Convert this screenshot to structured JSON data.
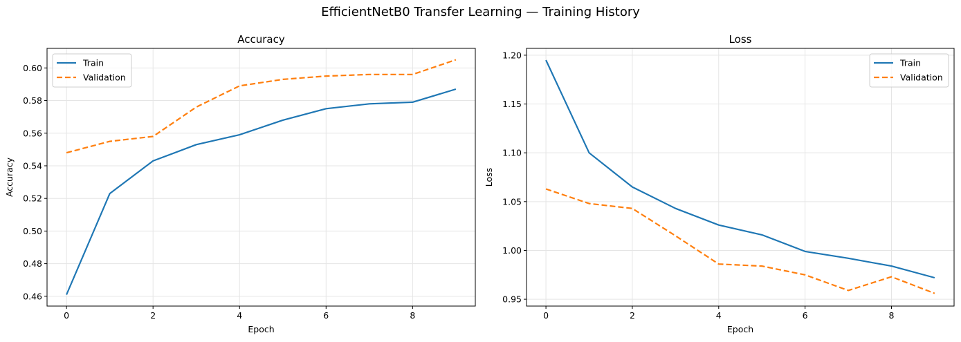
{
  "figure": {
    "suptitle": "EfficientNetB0 Transfer Learning — Training History"
  },
  "colors": {
    "train": "#1f77b4",
    "validation": "#ff7f0e",
    "grid": "#e5e5e5",
    "axes": "#000000"
  },
  "chart_data": [
    {
      "type": "line",
      "title": "Accuracy",
      "xlabel": "Epoch",
      "ylabel": "Accuracy",
      "x": [
        0,
        1,
        2,
        3,
        4,
        5,
        6,
        7,
        8,
        9
      ],
      "xticks": [
        "0",
        "2",
        "4",
        "6",
        "8"
      ],
      "yticks": [
        "0.46",
        "0.48",
        "0.50",
        "0.52",
        "0.54",
        "0.56",
        "0.58",
        "0.60"
      ],
      "ylim": [
        0.454,
        0.612
      ],
      "xlim": [
        -0.45,
        9.45
      ],
      "grid": true,
      "legend_position": "upper left",
      "series": [
        {
          "name": "Train",
          "style": "solid",
          "values": [
            0.461,
            0.523,
            0.543,
            0.553,
            0.559,
            0.568,
            0.575,
            0.578,
            0.579,
            0.587
          ]
        },
        {
          "name": "Validation",
          "style": "dashed",
          "values": [
            0.548,
            0.555,
            0.558,
            0.576,
            0.589,
            0.593,
            0.595,
            0.596,
            0.596,
            0.605
          ]
        }
      ]
    },
    {
      "type": "line",
      "title": "Loss",
      "xlabel": "Epoch",
      "ylabel": "Loss",
      "x": [
        0,
        1,
        2,
        3,
        4,
        5,
        6,
        7,
        8,
        9
      ],
      "xticks": [
        "0",
        "2",
        "4",
        "6",
        "8"
      ],
      "yticks": [
        "0.95",
        "1.00",
        "1.05",
        "1.10",
        "1.15",
        "1.20"
      ],
      "ylim": [
        0.943,
        1.207
      ],
      "xlim": [
        -0.45,
        9.45
      ],
      "grid": true,
      "legend_position": "upper right",
      "series": [
        {
          "name": "Train",
          "style": "solid",
          "values": [
            1.195,
            1.1,
            1.065,
            1.043,
            1.026,
            1.016,
            0.999,
            0.992,
            0.984,
            0.972
          ]
        },
        {
          "name": "Validation",
          "style": "dashed",
          "values": [
            1.063,
            1.048,
            1.043,
            1.015,
            0.986,
            0.984,
            0.975,
            0.959,
            0.973,
            0.956
          ]
        }
      ]
    }
  ]
}
